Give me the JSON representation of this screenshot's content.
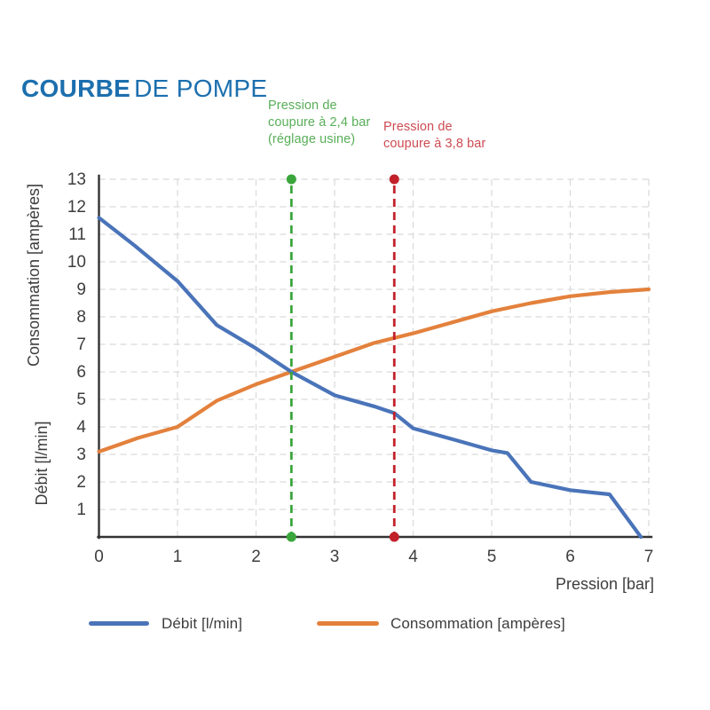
{
  "title": {
    "bold": "COURBE",
    "light": "DE POMPE"
  },
  "chart_data": {
    "type": "line",
    "title": "COURBE DE POMPE",
    "xlabel": "Pression [bar]",
    "ylabel_upper": "Consommation [ampères]",
    "ylabel_lower": "Débit [l/min]",
    "xlim": [
      0,
      7
    ],
    "ylim": [
      0,
      13
    ],
    "x_ticks": [
      0,
      1,
      2,
      3,
      4,
      5,
      6,
      7
    ],
    "y_ticks": [
      1,
      2,
      3,
      4,
      5,
      6,
      7,
      8,
      9,
      10,
      11,
      12,
      13
    ],
    "grid": true,
    "legend_position": "bottom",
    "colors": {
      "axis": "#333333",
      "grid": "#d9d9d9",
      "tick_text": "#3d3d3d",
      "title": "#1c6fae"
    },
    "series": [
      {
        "name": "Débit [l/min]",
        "color": "#4a74b9",
        "x": [
          0,
          0.45,
          1,
          1.5,
          2,
          2.45,
          3,
          3.5,
          3.76,
          4,
          4.5,
          5,
          5.2,
          5.5,
          6,
          6.5,
          6.9
        ],
        "y": [
          11.6,
          10.6,
          9.3,
          7.7,
          6.85,
          6.0,
          5.15,
          4.75,
          4.5,
          3.95,
          3.55,
          3.15,
          3.05,
          2.0,
          1.7,
          1.55,
          0
        ]
      },
      {
        "name": "Consommation [ampères]",
        "color": "#e3813c",
        "x": [
          0,
          0.5,
          1,
          1.5,
          2,
          2.45,
          3,
          3.5,
          4,
          4.5,
          5,
          5.5,
          6,
          6.5,
          7
        ],
        "y": [
          3.1,
          3.6,
          4.0,
          4.95,
          5.55,
          6.0,
          6.55,
          7.05,
          7.4,
          7.8,
          8.2,
          8.5,
          8.75,
          8.9,
          9.0
        ]
      }
    ],
    "annotations": [
      {
        "x": 2.45,
        "line_color": "#3aa63c",
        "text_color": "#58ae58",
        "lines": [
          "Pression de",
          "coupure à 2,4 bar",
          "(réglage usine)"
        ]
      },
      {
        "x": 3.76,
        "line_color": "#c2212a",
        "text_color": "#cd4b52",
        "lines": [
          "Pression de",
          "coupure à 3,8 bar"
        ]
      }
    ]
  }
}
